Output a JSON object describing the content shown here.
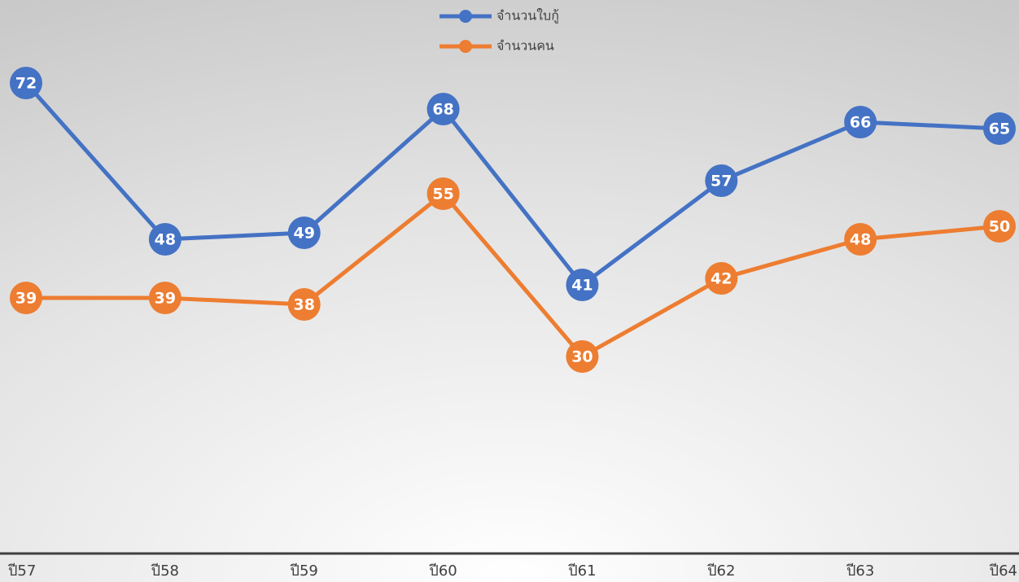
{
  "chart_data": {
    "type": "line",
    "categories": [
      "ปี57",
      "ปี58",
      "ปี59",
      "ปี60",
      "ปี61",
      "ปี62",
      "ปี63",
      "ปี64"
    ],
    "series": [
      {
        "name": "จำนวนใบกู้",
        "color": "#4472c4",
        "values": [
          72,
          48,
          49,
          68,
          41,
          57,
          66,
          65
        ]
      },
      {
        "name": "จำนวนคน",
        "color": "#ed7d31",
        "values": [
          39,
          39,
          38,
          55,
          30,
          42,
          48,
          50
        ]
      }
    ],
    "ylim": [
      0,
      85
    ],
    "data_labels": true,
    "legend": "top"
  }
}
